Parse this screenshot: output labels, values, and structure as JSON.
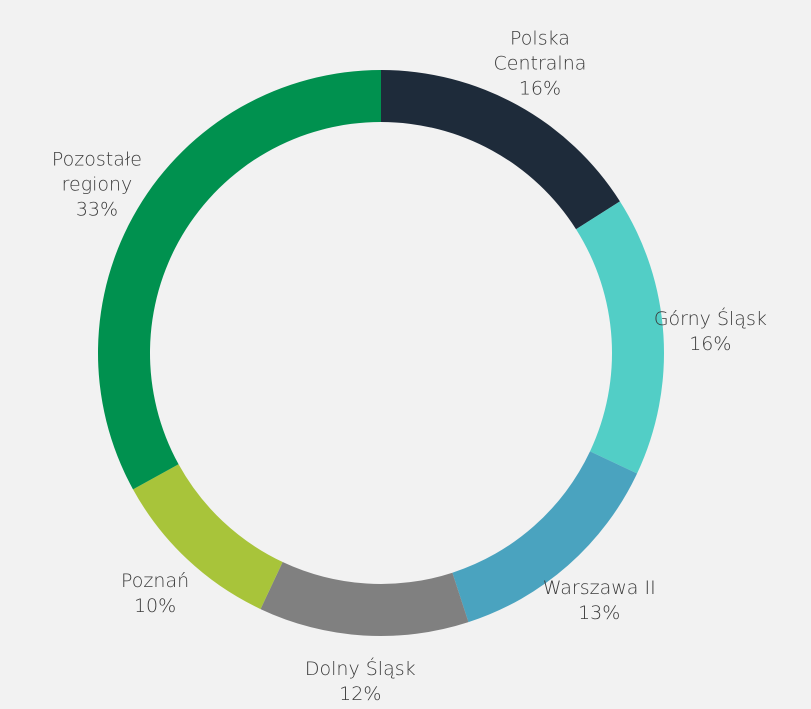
{
  "chart_data": {
    "type": "donut",
    "categories": [
      "Polska Centralna",
      "Górny Śląsk",
      "Warszawa II",
      "Dolny Śląsk",
      "Poznań",
      "Pozostałe regiony"
    ],
    "values": [
      16,
      16,
      13,
      12,
      10,
      33
    ],
    "value_labels": [
      "16%",
      "16%",
      "13%",
      "12%",
      "10%",
      "33%"
    ],
    "colors": [
      "#1e2b3a",
      "#52cec6",
      "#4aa3bf",
      "#808080",
      "#a8c43a",
      "#00914f"
    ]
  }
}
